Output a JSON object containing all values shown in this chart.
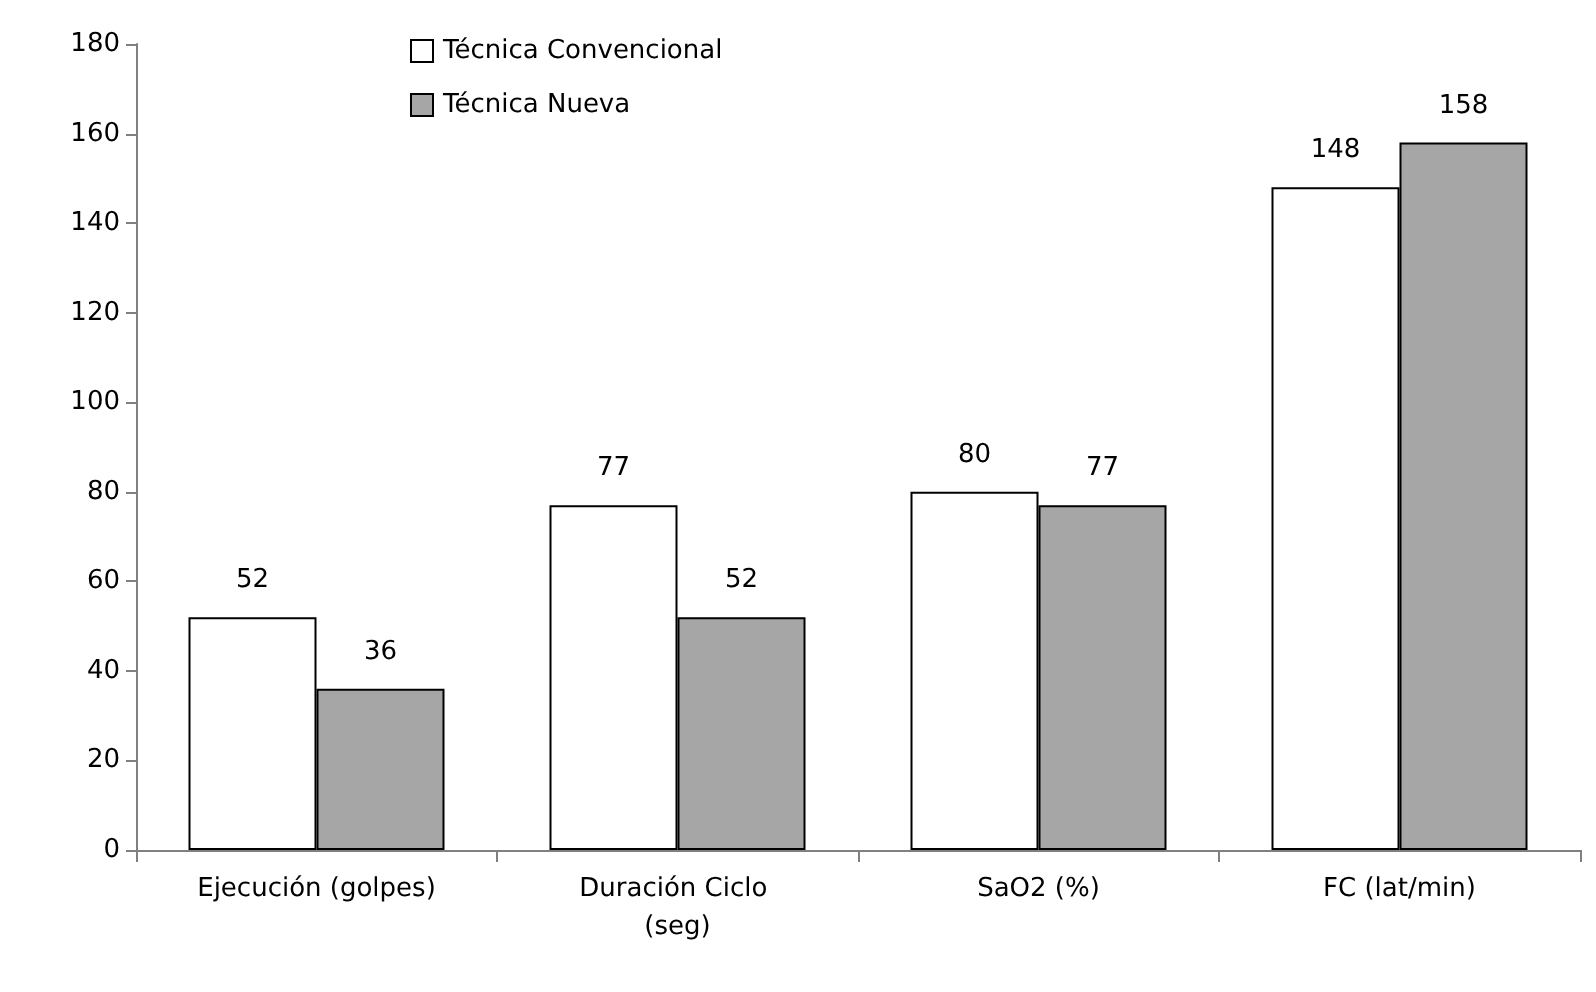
{
  "chart_data": {
    "type": "bar",
    "categories": [
      "Ejecución (golpes)",
      "Duración Ciclo (seg)",
      "SaO2 (%)",
      "FC (lat/min)"
    ],
    "series": [
      {
        "name": "Técnica Convencional",
        "color": "#ffffff",
        "values": [
          52,
          77,
          80,
          148
        ]
      },
      {
        "name": "Técnica Nueva",
        "color": "#a6a6a6",
        "values": [
          36,
          52,
          77,
          158
        ]
      }
    ],
    "ylim": [
      0,
      180
    ],
    "yticks": [
      0,
      20,
      40,
      60,
      80,
      100,
      120,
      140,
      160,
      180
    ],
    "grid": false,
    "legend": "top left",
    "data_labels": true
  }
}
